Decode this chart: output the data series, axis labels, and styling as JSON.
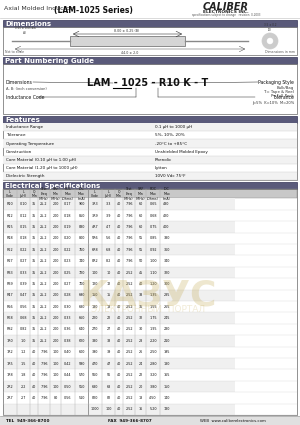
{
  "title_left": "Axial Molded Inductor",
  "title_series": "(LAM-1025 Series)",
  "company": "CALIBER",
  "company_sub": "ELECTRONICS INC.",
  "company_tagline": "specifications subject to change   revision: 0-2003",
  "bg_color": "#ffffff",
  "dimensions_title": "Dimensions",
  "part_numbering_title": "Part Numbering Guide",
  "features_title": "Features",
  "elec_spec_title": "Electrical Specifications",
  "dim_note": "Not to scale",
  "dim_unit": "Dimensions in mm",
  "part_number_example": "LAM - 1025 - R10 K - T",
  "features": [
    [
      "Inductance Range",
      "0.1 μH to 1000 μH"
    ],
    [
      "Tolerance",
      "5%, 10%, 20%"
    ],
    [
      "Operating Temperature",
      "-20°C to +85°C"
    ],
    [
      "Construction",
      "Unshielded Molded Epoxy"
    ],
    [
      "Core Material (0.10 μH to 1.00 μH)",
      "Phenolic"
    ],
    [
      "Core Material (1.20 μH to 1000 μH)",
      "Lytton"
    ],
    [
      "Dielectric Strength",
      "10V0 Vdc 75°F"
    ]
  ],
  "elec_headers": [
    "L\nCode",
    "L\n(μH)",
    "Q\nMin",
    "Test\nFreq\n(MHz)",
    "SRF\nMin\n(MHz)",
    "RDC\nMax\n(Ohms)",
    "IDC\nMax\n(mA)",
    "L\nCode",
    "L\n(μH)",
    "Q\nMin",
    "Test\nFreq\n(MHz)",
    "SRF\nMin\n(MHz)",
    "RDC\nMax\n(Ohms)",
    "IDC\nMax\n(mA)"
  ],
  "elec_data": [
    [
      "R10",
      "0.10",
      "35",
      "25.2",
      "200",
      "0.17",
      "900",
      "3R3",
      "3.3",
      "40",
      "7.96",
      "60",
      "0.65",
      "430"
    ],
    [
      "R12",
      "0.12",
      "35",
      "25.2",
      "200",
      "0.18",
      "850",
      "3R9",
      "3.9",
      "40",
      "7.96",
      "60",
      "0.68",
      "420"
    ],
    [
      "R15",
      "0.15",
      "35",
      "25.2",
      "200",
      "0.19",
      "830",
      "4R7",
      "4.7",
      "40",
      "7.96",
      "60",
      "0.75",
      "400"
    ],
    [
      "R18",
      "0.18",
      "35",
      "25.2",
      "200",
      "0.20",
      "800",
      "5R6",
      "5.6",
      "40",
      "7.96",
      "55",
      "0.85",
      "380"
    ],
    [
      "R22",
      "0.22",
      "35",
      "25.2",
      "200",
      "0.22",
      "760",
      "6R8",
      "6.8",
      "40",
      "7.96",
      "55",
      "0.92",
      "360"
    ],
    [
      "R27",
      "0.27",
      "35",
      "25.2",
      "200",
      "0.23",
      "740",
      "8R2",
      "8.2",
      "40",
      "7.96",
      "50",
      "1.00",
      "340"
    ],
    [
      "R33",
      "0.33",
      "35",
      "25.2",
      "200",
      "0.25",
      "720",
      "100",
      "10",
      "40",
      "2.52",
      "45",
      "1.10",
      "320"
    ],
    [
      "R39",
      "0.39",
      "35",
      "25.2",
      "200",
      "0.27",
      "700",
      "120",
      "12",
      "40",
      "2.52",
      "40",
      "1.20",
      "300"
    ],
    [
      "R47",
      "0.47",
      "35",
      "25.2",
      "200",
      "0.28",
      "690",
      "150",
      "15",
      "40",
      "2.52",
      "38",
      "1.35",
      "285"
    ],
    [
      "R56",
      "0.56",
      "35",
      "25.2",
      "200",
      "0.30",
      "680",
      "180",
      "18",
      "40",
      "2.52",
      "35",
      "1.55",
      "265"
    ],
    [
      "R68",
      "0.68",
      "35",
      "25.2",
      "200",
      "0.33",
      "660",
      "220",
      "22",
      "40",
      "2.52",
      "32",
      "1.75",
      "245"
    ],
    [
      "R82",
      "0.82",
      "35",
      "25.2",
      "200",
      "0.36",
      "640",
      "270",
      "27",
      "40",
      "2.52",
      "30",
      "1.95",
      "230"
    ],
    [
      "1R0",
      "1.0",
      "35",
      "25.2",
      "200",
      "0.38",
      "620",
      "330",
      "33",
      "40",
      "2.52",
      "28",
      "2.20",
      "210"
    ],
    [
      "1R2",
      "1.2",
      "40",
      "7.96",
      "100",
      "0.40",
      "600",
      "390",
      "39",
      "40",
      "2.52",
      "26",
      "2.50",
      "195"
    ],
    [
      "1R5",
      "1.5",
      "40",
      "7.96",
      "100",
      "0.42",
      "590",
      "470",
      "47",
      "40",
      "2.52",
      "24",
      "2.80",
      "180"
    ],
    [
      "1R8",
      "1.8",
      "40",
      "7.96",
      "100",
      "0.44",
      "570",
      "560",
      "56",
      "40",
      "2.52",
      "22",
      "3.20",
      "165"
    ],
    [
      "2R2",
      "2.2",
      "40",
      "7.96",
      "100",
      "0.50",
      "550",
      "680",
      "68",
      "40",
      "2.52",
      "20",
      "3.80",
      "150"
    ],
    [
      "2R7",
      "2.7",
      "40",
      "7.96",
      "80",
      "0.56",
      "510",
      "820",
      "82",
      "40",
      "2.52",
      "18",
      "4.50",
      "140"
    ],
    [
      "",
      "",
      "",
      "",
      "",
      "",
      "",
      "1000",
      "100",
      "40",
      "2.52",
      "16",
      "5.20",
      "130"
    ]
  ],
  "footer_tel": "TEL  949-366-8700",
  "footer_fax": "FAX  949-366-8707",
  "footer_web": "WEB  www.caliberelectronics.com",
  "watermark": "КАЗУС",
  "watermark2": "ЭЛЕКТРОННЫЙ  ПОРТАЛ"
}
